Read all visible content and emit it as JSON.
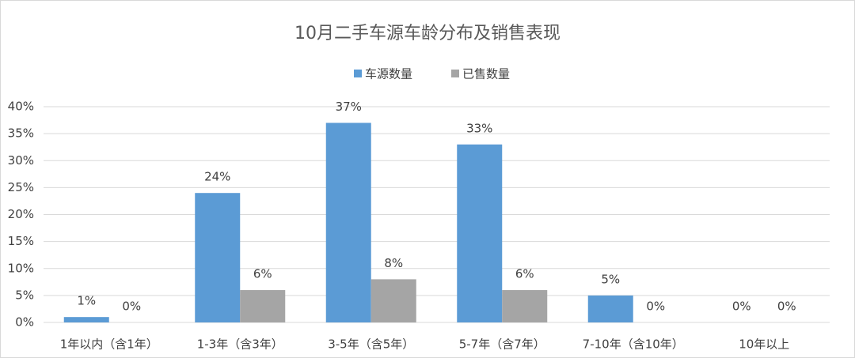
{
  "chart_data": {
    "type": "bar",
    "title": "10月二手车源车龄分布及销售表现",
    "categories": [
      "1年以内（含1年）",
      "1-3年（含3年）",
      "3-5年（含5年）",
      "5-7年（含7年）",
      "7-10年（含10年）",
      "10年以上"
    ],
    "series": [
      {
        "name": "车源数量",
        "color": "#5b9bd5",
        "values": [
          1,
          24,
          37,
          33,
          5,
          0
        ],
        "value_labels": [
          "1%",
          "24%",
          "37%",
          "33%",
          "5%",
          "0%"
        ]
      },
      {
        "name": "已售数量",
        "color": "#a5a5a5",
        "values": [
          0,
          6,
          8,
          6,
          0,
          0
        ],
        "value_labels": [
          "0%",
          "6%",
          "8%",
          "6%",
          "0%",
          "0%"
        ]
      }
    ],
    "ylim": [
      0,
      40
    ],
    "yticks": [
      {
        "value": 0,
        "label": "0%"
      },
      {
        "value": 5,
        "label": "5%"
      },
      {
        "value": 10,
        "label": "10%"
      },
      {
        "value": 15,
        "label": "15%"
      },
      {
        "value": 20,
        "label": "20%"
      },
      {
        "value": 25,
        "label": "25%"
      },
      {
        "value": 30,
        "label": "30%"
      },
      {
        "value": 35,
        "label": "35%"
      },
      {
        "value": 40,
        "label": "40%"
      }
    ],
    "grid": true,
    "legend": "top"
  }
}
